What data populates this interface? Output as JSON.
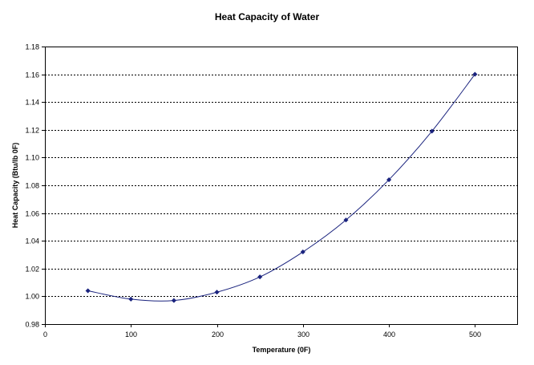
{
  "chart_data": {
    "type": "scatter",
    "title": "Heat Capacity of Water",
    "xlabel": "Temperature (0F)",
    "ylabel": "Heat Capacity (Btu/lb 0F)",
    "xlim": [
      0,
      550
    ],
    "ylim": [
      0.98,
      1.18
    ],
    "x_ticks": [
      0,
      100,
      200,
      300,
      400,
      500
    ],
    "x_tick_labels": [
      "0",
      "100",
      "200",
      "300",
      "400",
      "500"
    ],
    "y_ticks": [
      0.98,
      1.0,
      1.02,
      1.04,
      1.06,
      1.08,
      1.1,
      1.12,
      1.14,
      1.16,
      1.18
    ],
    "y_tick_labels": [
      "0.98",
      "1.00",
      "1.02",
      "1.04",
      "1.06",
      "1.08",
      "1.10",
      "1.12",
      "1.14",
      "1.16",
      "1.18"
    ],
    "grid": "horizontal-dashed",
    "legend": "none",
    "series": [
      {
        "x": [
          50,
          100,
          150,
          200,
          250,
          300,
          350,
          400,
          450,
          500
        ],
        "y": [
          1.004,
          0.998,
          0.997,
          1.003,
          1.014,
          1.032,
          1.055,
          1.084,
          1.119,
          1.16
        ],
        "color": "#1a237e",
        "marker": "diamond",
        "line": "smooth"
      }
    ]
  }
}
